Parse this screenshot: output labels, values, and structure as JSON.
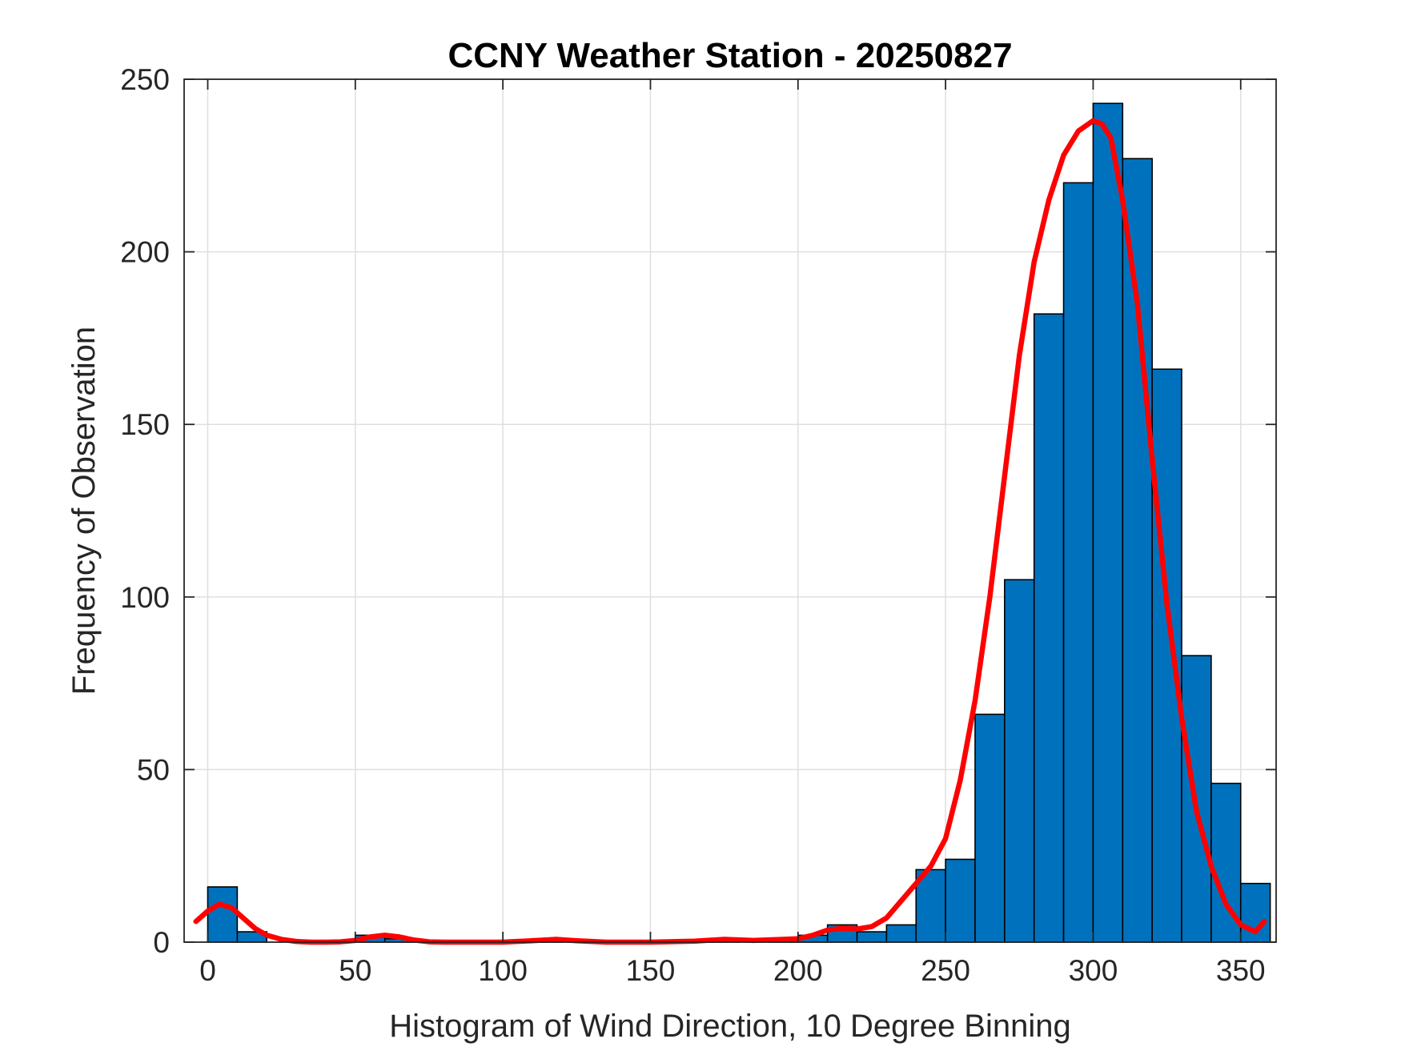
{
  "chart_data": {
    "type": "bar",
    "title": "CCNY Weather Station - 20250827",
    "xlabel": "Histogram of Wind Direction, 10 Degree Binning",
    "ylabel": "Frequency of Observation",
    "xlim": [
      -8,
      362
    ],
    "ylim": [
      0,
      250
    ],
    "xticks": [
      0,
      50,
      100,
      150,
      200,
      250,
      300,
      350
    ],
    "yticks": [
      0,
      50,
      100,
      150,
      200,
      250
    ],
    "grid": true,
    "bin_width": 10,
    "bar_color": "#0072bd",
    "fit_color": "#ff0000",
    "bins": [
      {
        "start": 0,
        "end": 10,
        "count": 16
      },
      {
        "start": 10,
        "end": 20,
        "count": 3
      },
      {
        "start": 20,
        "end": 30,
        "count": 0
      },
      {
        "start": 30,
        "end": 40,
        "count": 0
      },
      {
        "start": 40,
        "end": 50,
        "count": 0
      },
      {
        "start": 50,
        "end": 60,
        "count": 2
      },
      {
        "start": 60,
        "end": 70,
        "count": 1
      },
      {
        "start": 70,
        "end": 80,
        "count": 0
      },
      {
        "start": 80,
        "end": 90,
        "count": 0
      },
      {
        "start": 90,
        "end": 100,
        "count": 0
      },
      {
        "start": 100,
        "end": 110,
        "count": 0
      },
      {
        "start": 110,
        "end": 120,
        "count": 1
      },
      {
        "start": 120,
        "end": 130,
        "count": 0
      },
      {
        "start": 130,
        "end": 140,
        "count": 0
      },
      {
        "start": 140,
        "end": 150,
        "count": 0
      },
      {
        "start": 150,
        "end": 160,
        "count": 0
      },
      {
        "start": 160,
        "end": 170,
        "count": 0
      },
      {
        "start": 170,
        "end": 180,
        "count": 1
      },
      {
        "start": 180,
        "end": 190,
        "count": 0
      },
      {
        "start": 190,
        "end": 200,
        "count": 1
      },
      {
        "start": 200,
        "end": 210,
        "count": 2
      },
      {
        "start": 210,
        "end": 220,
        "count": 5
      },
      {
        "start": 220,
        "end": 230,
        "count": 3
      },
      {
        "start": 230,
        "end": 240,
        "count": 5
      },
      {
        "start": 240,
        "end": 250,
        "count": 21
      },
      {
        "start": 250,
        "end": 260,
        "count": 24
      },
      {
        "start": 260,
        "end": 270,
        "count": 66
      },
      {
        "start": 270,
        "end": 280,
        "count": 105
      },
      {
        "start": 280,
        "end": 290,
        "count": 182
      },
      {
        "start": 290,
        "end": 300,
        "count": 220
      },
      {
        "start": 300,
        "end": 310,
        "count": 243
      },
      {
        "start": 310,
        "end": 320,
        "count": 227
      },
      {
        "start": 320,
        "end": 330,
        "count": 166
      },
      {
        "start": 330,
        "end": 340,
        "count": 83
      },
      {
        "start": 340,
        "end": 350,
        "count": 46
      },
      {
        "start": 350,
        "end": 360,
        "count": 17
      }
    ],
    "fit_curve": {
      "x": [
        -4,
        0,
        4,
        8,
        12,
        16,
        20,
        25,
        30,
        35,
        40,
        45,
        50,
        55,
        60,
        65,
        70,
        75,
        80,
        90,
        100,
        110,
        118,
        125,
        135,
        150,
        165,
        175,
        185,
        195,
        200,
        205,
        210,
        215,
        220,
        225,
        230,
        235,
        240,
        245,
        250,
        255,
        260,
        265,
        270,
        275,
        280,
        285,
        290,
        295,
        300,
        303,
        306,
        310,
        315,
        320,
        325,
        330,
        335,
        340,
        345,
        350,
        355,
        358
      ],
      "y": [
        6,
        9,
        11,
        10,
        7,
        4,
        2,
        0.8,
        0.2,
        0,
        0,
        0.1,
        0.5,
        1.5,
        2,
        1.5,
        0.6,
        0.1,
        0,
        0,
        0,
        0.4,
        0.8,
        0.4,
        0,
        0,
        0.3,
        0.8,
        0.5,
        0.8,
        1,
        2,
        3.5,
        4,
        3.8,
        4.5,
        7,
        12,
        17,
        22,
        30,
        47,
        70,
        100,
        135,
        170,
        197,
        215,
        228,
        235,
        238,
        237,
        233,
        215,
        185,
        140,
        98,
        65,
        38,
        22,
        11,
        5,
        3,
        6
      ]
    }
  }
}
